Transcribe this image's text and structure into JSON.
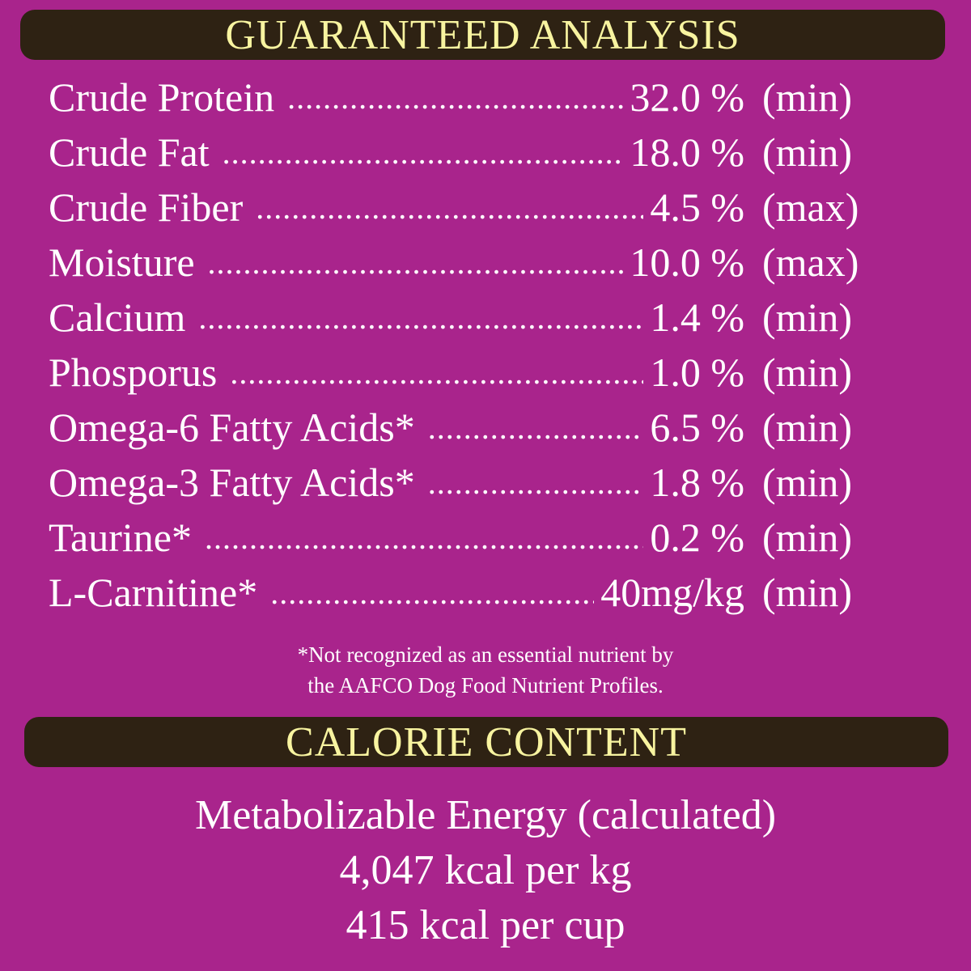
{
  "guaranteed_analysis": {
    "title": "GUARANTEED ANALYSIS",
    "rows": [
      {
        "name": "Crude Protein",
        "value": "32.0 %",
        "unit": "(min)"
      },
      {
        "name": "Crude Fat",
        "value": "18.0 %",
        "unit": "(min)"
      },
      {
        "name": "Crude Fiber",
        "value": "4.5 %",
        "unit": "(max)"
      },
      {
        "name": "Moisture",
        "value": "10.0 %",
        "unit": "(max)"
      },
      {
        "name": "Calcium",
        "value": "1.4 %",
        "unit": "(min)"
      },
      {
        "name": "Phosporus",
        "value": "1.0 %",
        "unit": "(min)"
      },
      {
        "name": "Omega-6 Fatty Acids*",
        "value": "6.5 %",
        "unit": "(min)"
      },
      {
        "name": "Omega-3 Fatty Acids*",
        "value": "1.8 %",
        "unit": "(min)"
      },
      {
        "name": "Taurine*",
        "value": "0.2 %",
        "unit": "(min)"
      },
      {
        "name": "L-Carnitine*",
        "value": "40mg/kg",
        "unit": "(min)"
      }
    ],
    "footnote": [
      "*Not recognized as an essential nutrient by",
      "the AAFCO Dog Food Nutrient Profiles."
    ]
  },
  "calorie_content": {
    "title": "CALORIE CONTENT",
    "lines": [
      "Metabolizable Energy (calculated)",
      "4,047 kcal per kg",
      "415 kcal per cup"
    ]
  },
  "colors": {
    "background": "#a9248c",
    "header_bar": "#2e2213",
    "header_text": "#f8f4a0",
    "body_text": "#ffffff"
  }
}
